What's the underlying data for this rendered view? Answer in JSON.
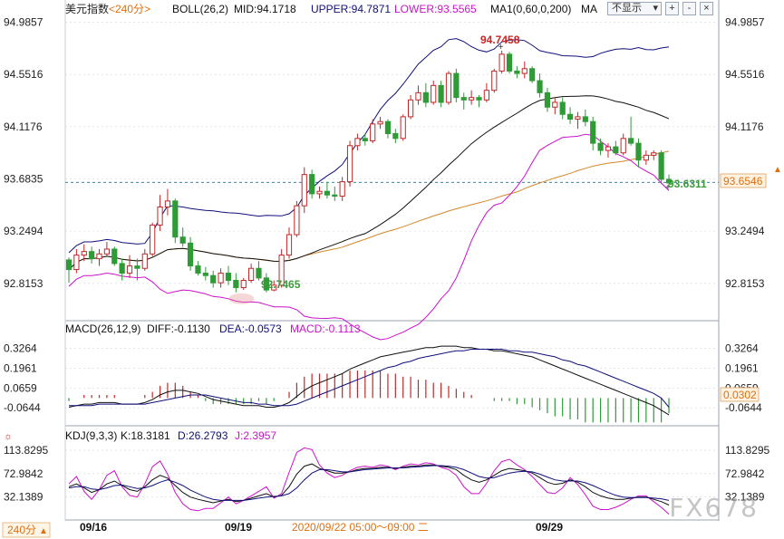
{
  "colors": {
    "up": "#c0282a",
    "down": "#2f9b37",
    "mid": "#111111",
    "upper": "#10107a",
    "lower": "#cc11cc",
    "ma": "#d4882a",
    "grid": "#cfd6de",
    "axis": "#555555",
    "price_tag_bg": "#fff2e0",
    "price_tag_text": "#e07010",
    "dash_line": "#2d6e8a",
    "high_label": "#d02020",
    "low_label": "#3c9a3c"
  },
  "header": {
    "symbol": "美元指数",
    "period_tag": "<240分>",
    "boll_label": "BOLL(26,2)",
    "mid_label": "MID:94.1718",
    "upper_label": "UPPER:94.7871",
    "lower_label": "LOWER:93.5565",
    "ma_label": "MA1(0,60,0,200)",
    "ma_name": "MA",
    "display_select": "不显示",
    "buttons": [
      "+",
      "-",
      "×"
    ]
  },
  "macd_header": {
    "label": "MACD(26,12,9)",
    "diff": "DIFF:-0.1130",
    "dea": "DEA:-0.0573",
    "macd": "MACD:-0.1113"
  },
  "kdj_header": {
    "label": "KDJ(9,3,3)",
    "k": "K:18.3181",
    "d": "D:26.2793",
    "j": "J:2.3957"
  },
  "footer": {
    "period_button": "240分",
    "period_arrow": "▲",
    "dates": [
      "09/16",
      "09/19",
      "09/29"
    ],
    "crosshair_time": "2020/09/22 05:00～09:00 二"
  },
  "annotations": {
    "high": "94.7458",
    "low": "92.7465",
    "last": "93.6311",
    "price_tag": "93.6546",
    "macd_tag": "0.0302"
  },
  "watermark": "FX678",
  "chart_data": [
    {
      "type": "candlestick",
      "panel": "main",
      "y_ticks": [
        "94.9857",
        "94.5516",
        "94.1176",
        "93.6835",
        "93.2494",
        "92.8153"
      ],
      "ylim": [
        92.52,
        95.02
      ],
      "current_price": 93.6546,
      "ohlc": [
        [
          93.01,
          93.03,
          92.82,
          92.93
        ],
        [
          92.93,
          93.1,
          92.9,
          93.05
        ],
        [
          93.05,
          93.14,
          93.0,
          93.08
        ],
        [
          93.08,
          93.12,
          92.98,
          93.02
        ],
        [
          93.02,
          93.1,
          92.96,
          93.06
        ],
        [
          93.06,
          93.16,
          93.04,
          93.1
        ],
        [
          93.1,
          93.12,
          92.96,
          92.98
        ],
        [
          92.98,
          93.02,
          92.84,
          92.9
        ],
        [
          92.9,
          93.05,
          92.86,
          92.96
        ],
        [
          92.96,
          93.02,
          92.84,
          92.94
        ],
        [
          92.94,
          93.1,
          92.92,
          93.06
        ],
        [
          93.06,
          93.32,
          93.04,
          93.3
        ],
        [
          93.3,
          93.55,
          93.25,
          93.45
        ],
        [
          93.45,
          93.6,
          93.38,
          93.5
        ],
        [
          93.5,
          93.52,
          93.15,
          93.2
        ],
        [
          93.2,
          93.28,
          93.12,
          93.15
        ],
        [
          93.15,
          93.2,
          92.92,
          92.96
        ],
        [
          92.96,
          93.0,
          92.88,
          92.9
        ],
        [
          92.9,
          92.95,
          92.84,
          92.88
        ],
        [
          92.88,
          92.92,
          92.78,
          92.82
        ],
        [
          92.82,
          92.94,
          92.78,
          92.9
        ],
        [
          92.9,
          92.96,
          92.8,
          92.84
        ],
        [
          92.84,
          92.9,
          92.74,
          92.78
        ],
        [
          92.78,
          92.86,
          92.76,
          92.84
        ],
        [
          92.84,
          92.98,
          92.82,
          92.94
        ],
        [
          92.94,
          93.0,
          92.84,
          92.86
        ],
        [
          92.86,
          92.9,
          92.74,
          92.76
        ],
        [
          92.76,
          92.84,
          92.75,
          92.8
        ],
        [
          92.8,
          93.1,
          92.78,
          93.05
        ],
        [
          93.05,
          93.28,
          93.02,
          93.22
        ],
        [
          93.22,
          93.5,
          93.2,
          93.46
        ],
        [
          93.46,
          93.78,
          93.4,
          93.72
        ],
        [
          93.72,
          93.76,
          93.52,
          93.56
        ],
        [
          93.56,
          93.62,
          93.52,
          93.58
        ],
        [
          93.58,
          93.66,
          93.52,
          93.55
        ],
        [
          93.55,
          93.62,
          93.5,
          93.54
        ],
        [
          93.54,
          93.7,
          93.5,
          93.66
        ],
        [
          93.66,
          94.0,
          93.62,
          93.96
        ],
        [
          93.96,
          94.06,
          93.92,
          94.02
        ],
        [
          94.02,
          94.06,
          93.96,
          94.0
        ],
        [
          94.0,
          94.18,
          93.98,
          94.14
        ],
        [
          94.14,
          94.2,
          94.1,
          94.16
        ],
        [
          94.16,
          94.18,
          94.02,
          94.06
        ],
        [
          94.06,
          94.1,
          93.98,
          94.02
        ],
        [
          94.02,
          94.22,
          94.0,
          94.2
        ],
        [
          94.2,
          94.38,
          94.18,
          94.34
        ],
        [
          94.34,
          94.46,
          94.3,
          94.4
        ],
        [
          94.4,
          94.48,
          94.28,
          94.32
        ],
        [
          94.32,
          94.5,
          94.3,
          94.46
        ],
        [
          94.46,
          94.5,
          94.28,
          94.32
        ],
        [
          94.32,
          94.58,
          94.3,
          94.56
        ],
        [
          94.56,
          94.6,
          94.32,
          94.36
        ],
        [
          94.36,
          94.4,
          94.26,
          94.34
        ],
        [
          94.34,
          94.42,
          94.3,
          94.36
        ],
        [
          94.36,
          94.38,
          94.28,
          94.34
        ],
        [
          94.34,
          94.48,
          94.32,
          94.42
        ],
        [
          94.42,
          94.6,
          94.4,
          94.58
        ],
        [
          94.58,
          94.75,
          94.56,
          94.72
        ],
        [
          94.72,
          94.74,
          94.56,
          94.58
        ],
        [
          94.58,
          94.62,
          94.52,
          94.56
        ],
        [
          94.56,
          94.66,
          94.52,
          94.6
        ],
        [
          94.6,
          94.62,
          94.48,
          94.5
        ],
        [
          94.5,
          94.56,
          94.36,
          94.4
        ],
        [
          94.4,
          94.44,
          94.24,
          94.28
        ],
        [
          94.28,
          94.36,
          94.22,
          94.32
        ],
        [
          94.32,
          94.36,
          94.18,
          94.22
        ],
        [
          94.22,
          94.28,
          94.14,
          94.18
        ],
        [
          94.18,
          94.24,
          94.1,
          94.2
        ],
        [
          94.2,
          94.26,
          94.12,
          94.16
        ],
        [
          94.16,
          94.2,
          93.92,
          93.98
        ],
        [
          93.98,
          94.02,
          93.88,
          93.92
        ],
        [
          93.92,
          93.98,
          93.86,
          93.95
        ],
        [
          93.95,
          94.0,
          93.88,
          93.9
        ],
        [
          93.9,
          94.06,
          93.88,
          94.02
        ],
        [
          94.02,
          94.2,
          93.96,
          93.98
        ],
        [
          93.98,
          94.02,
          93.78,
          93.84
        ],
        [
          93.84,
          93.92,
          93.8,
          93.88
        ],
        [
          93.88,
          93.92,
          93.84,
          93.9
        ],
        [
          93.9,
          93.92,
          93.64,
          93.68
        ],
        [
          93.68,
          93.72,
          93.62,
          93.65
        ]
      ]
    },
    {
      "type": "histogram+line",
      "panel": "macd",
      "y_ticks": [
        "0.3264",
        "0.1961",
        "0.0659",
        "-0.0644"
      ],
      "ylim": [
        -0.17,
        0.4
      ],
      "diff": [
        -0.06,
        -0.05,
        -0.04,
        -0.04,
        -0.03,
        -0.03,
        -0.03,
        -0.04,
        -0.04,
        -0.04,
        -0.03,
        -0.01,
        0.02,
        0.04,
        0.05,
        0.05,
        0.04,
        0.03,
        0.01,
        -0.01,
        -0.02,
        -0.03,
        -0.04,
        -0.05,
        -0.05,
        -0.05,
        -0.06,
        -0.06,
        -0.05,
        -0.03,
        0.01,
        0.05,
        0.08,
        0.1,
        0.12,
        0.14,
        0.16,
        0.19,
        0.21,
        0.23,
        0.25,
        0.27,
        0.28,
        0.29,
        0.3,
        0.31,
        0.32,
        0.33,
        0.33,
        0.34,
        0.34,
        0.34,
        0.33,
        0.33,
        0.32,
        0.32,
        0.31,
        0.31,
        0.3,
        0.29,
        0.28,
        0.27,
        0.25,
        0.23,
        0.21,
        0.19,
        0.17,
        0.15,
        0.13,
        0.11,
        0.09,
        0.07,
        0.05,
        0.03,
        0.01,
        -0.01,
        -0.03,
        -0.05,
        -0.08,
        -0.11
      ],
      "dea": [
        -0.05,
        -0.05,
        -0.05,
        -0.05,
        -0.04,
        -0.04,
        -0.04,
        -0.04,
        -0.04,
        -0.04,
        -0.04,
        -0.03,
        -0.02,
        -0.01,
        0.0,
        0.01,
        0.02,
        0.02,
        0.02,
        0.01,
        0.0,
        -0.01,
        -0.02,
        -0.03,
        -0.03,
        -0.04,
        -0.04,
        -0.05,
        -0.05,
        -0.05,
        -0.04,
        -0.02,
        0.0,
        0.02,
        0.04,
        0.06,
        0.08,
        0.1,
        0.12,
        0.14,
        0.16,
        0.18,
        0.2,
        0.21,
        0.23,
        0.24,
        0.26,
        0.27,
        0.28,
        0.29,
        0.3,
        0.31,
        0.31,
        0.32,
        0.32,
        0.32,
        0.32,
        0.32,
        0.31,
        0.31,
        0.3,
        0.3,
        0.29,
        0.28,
        0.27,
        0.25,
        0.24,
        0.22,
        0.21,
        0.19,
        0.17,
        0.15,
        0.13,
        0.11,
        0.09,
        0.07,
        0.05,
        0.03,
        0.0,
        -0.06
      ]
    },
    {
      "type": "line",
      "panel": "kdj",
      "y_ticks": [
        "113.8295",
        "72.9842",
        "32.1389"
      ],
      "ylim": [
        -5,
        125
      ],
      "k": [
        50,
        55,
        48,
        40,
        45,
        55,
        60,
        52,
        45,
        42,
        50,
        62,
        70,
        65,
        52,
        40,
        32,
        28,
        25,
        22,
        25,
        28,
        24,
        26,
        30,
        34,
        38,
        32,
        35,
        50,
        72,
        86,
        90,
        82,
        78,
        74,
        74,
        76,
        80,
        82,
        82,
        84,
        84,
        82,
        84,
        86,
        86,
        88,
        88,
        86,
        84,
        80,
        70,
        62,
        58,
        62,
        70,
        78,
        82,
        80,
        78,
        74,
        66,
        58,
        54,
        56,
        62,
        58,
        50,
        40,
        34,
        30,
        28,
        28,
        30,
        32,
        32,
        28,
        24,
        18
      ],
      "d": [
        48,
        50,
        50,
        46,
        45,
        48,
        52,
        53,
        50,
        47,
        48,
        52,
        58,
        62,
        58,
        52,
        44,
        38,
        32,
        28,
        26,
        26,
        26,
        26,
        28,
        30,
        32,
        33,
        34,
        38,
        48,
        62,
        74,
        80,
        80,
        78,
        76,
        76,
        78,
        80,
        81,
        82,
        83,
        83,
        83,
        84,
        85,
        86,
        87,
        87,
        86,
        84,
        80,
        74,
        68,
        65,
        66,
        70,
        74,
        76,
        77,
        76,
        72,
        67,
        62,
        60,
        60,
        60,
        57,
        52,
        46,
        40,
        35,
        32,
        31,
        31,
        31,
        30,
        29,
        26
      ],
      "j": [
        55,
        68,
        42,
        28,
        45,
        70,
        78,
        50,
        35,
        32,
        55,
        85,
        95,
        72,
        40,
        20,
        10,
        8,
        12,
        12,
        22,
        32,
        20,
        26,
        34,
        42,
        50,
        30,
        38,
        75,
        110,
        118,
        115,
        88,
        74,
        66,
        70,
        78,
        84,
        86,
        84,
        88,
        86,
        80,
        86,
        90,
        88,
        92,
        90,
        84,
        80,
        70,
        50,
        38,
        38,
        56,
        78,
        94,
        98,
        88,
        80,
        68,
        54,
        40,
        38,
        48,
        66,
        54,
        36,
        16,
        10,
        10,
        14,
        20,
        28,
        34,
        34,
        24,
        14,
        2
      ]
    }
  ]
}
